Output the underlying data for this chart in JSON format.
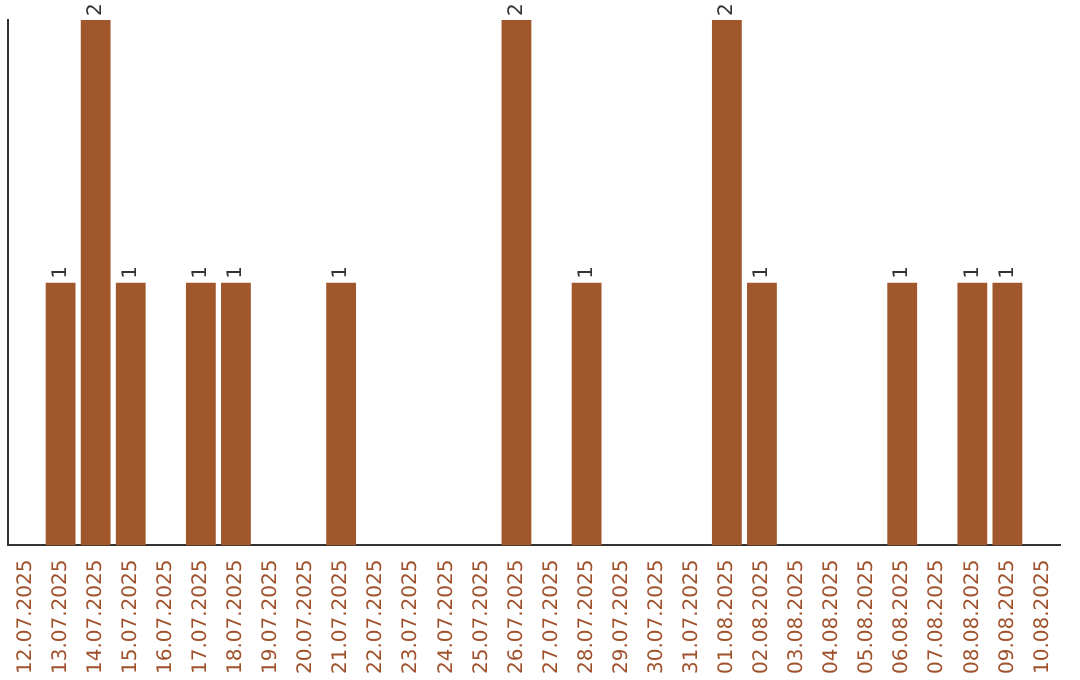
{
  "chart_data": {
    "type": "bar",
    "color": "#a0572b",
    "grid": false,
    "legend": false,
    "categories": [
      "12.07.2025",
      "13.07.2025",
      "14.07.2025",
      "15.07.2025",
      "16.07.2025",
      "17.07.2025",
      "18.07.2025",
      "19.07.2025",
      "20.07.2025",
      "21.07.2025",
      "22.07.2025",
      "23.07.2025",
      "24.07.2025",
      "25.07.2025",
      "26.07.2025",
      "27.07.2025",
      "28.07.2025",
      "29.07.2025",
      "30.07.2025",
      "31.07.2025",
      "01.08.2025",
      "02.08.2025",
      "03.08.2025",
      "04.08.2025",
      "05.08.2025",
      "06.08.2025",
      "07.08.2025",
      "08.08.2025",
      "09.08.2025",
      "10.08.2025"
    ],
    "values": [
      0,
      1,
      2,
      1,
      0,
      1,
      1,
      0,
      0,
      1,
      0,
      0,
      0,
      0,
      2,
      0,
      1,
      0,
      0,
      0,
      2,
      1,
      0,
      0,
      0,
      1,
      0,
      1,
      1,
      0
    ],
    "value_labels": [
      null,
      "1",
      "2",
      "1",
      null,
      "1",
      "1",
      null,
      null,
      "1",
      null,
      null,
      null,
      null,
      "2",
      null,
      "1",
      null,
      null,
      null,
      "2",
      "1",
      null,
      null,
      null,
      "1",
      null,
      "1",
      "1",
      null
    ]
  }
}
